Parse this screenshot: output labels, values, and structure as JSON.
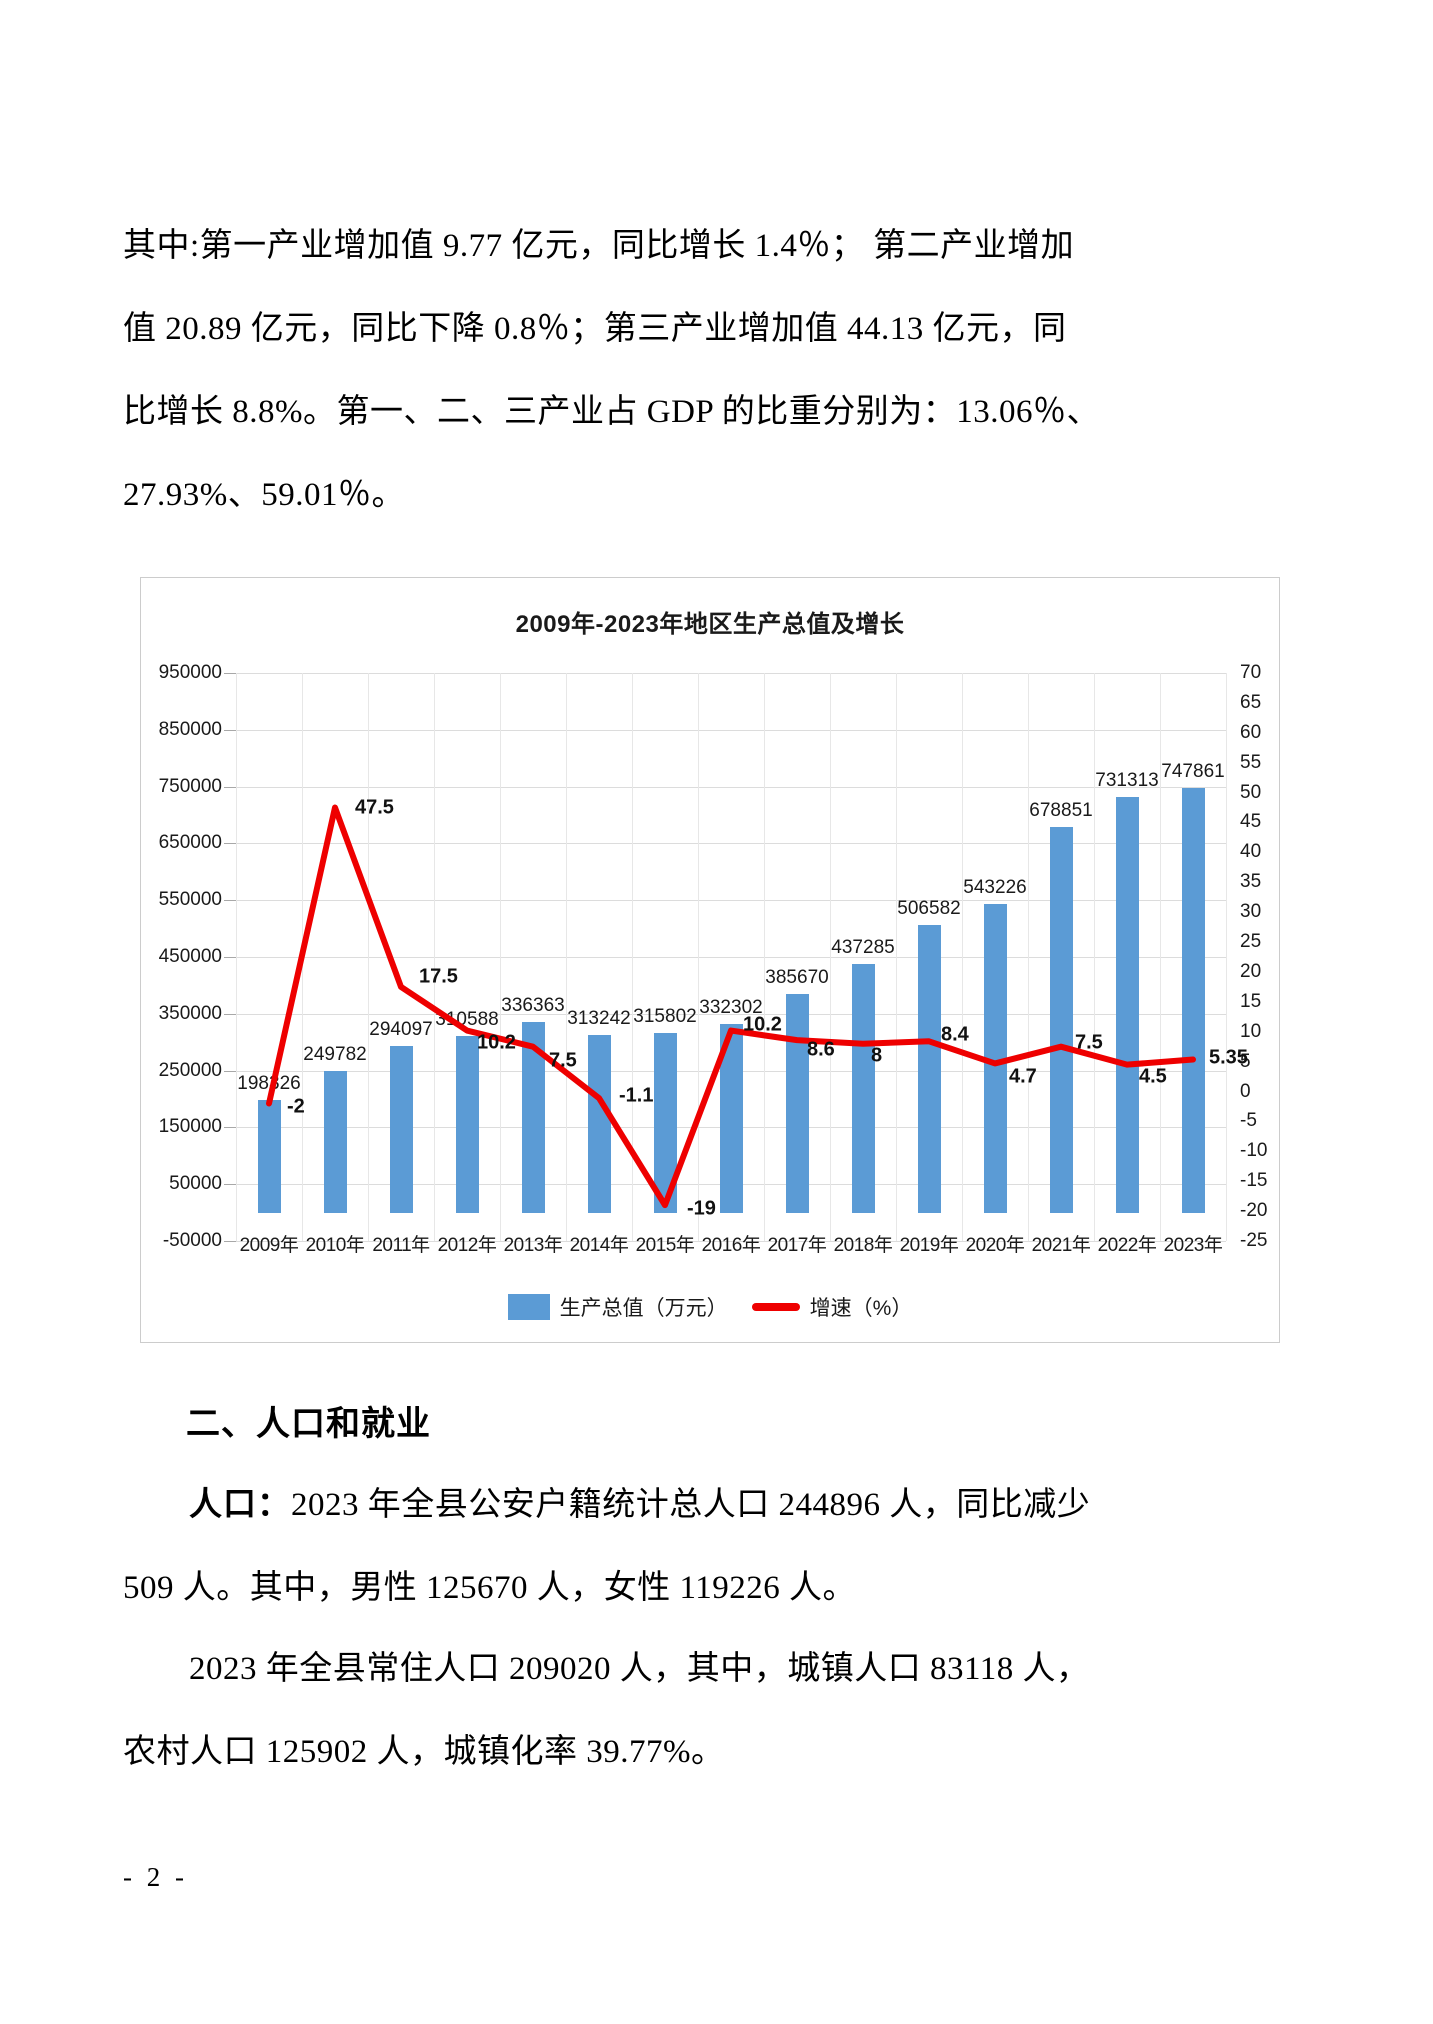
{
  "page": {
    "footer": "- 2 -"
  },
  "body_text": {
    "para1": {
      "lines": [
        {
          "text": "其中:第一产业增加值 9.77 亿元，同比增长 1.4％； 第二产业增加",
          "indent": false
        },
        {
          "text": "值 20.89 亿元，同比下降 0.8％；第三产业增加值 44.13 亿元，同",
          "indent": false
        },
        {
          "text": "比增长 8.8%。第一、二、三产业占 GDP 的比重分别为：13.06％、",
          "indent": false
        },
        {
          "text": "27.93%、59.01％。",
          "indent": false
        }
      ]
    },
    "section_heading": "二、人口和就业",
    "para2": {
      "lines": [
        {
          "bold_prefix": "人口：",
          "text": "2023 年全县公安户籍统计总人口 244896 人，同比减少",
          "indent": true
        },
        {
          "text": "509 人。其中，男性 125670 人，女性 119226 人。",
          "indent": false
        }
      ]
    },
    "para3": {
      "lines": [
        {
          "text": "2023 年全县常住人口 209020 人，其中，城镇人口 83118 人，",
          "indent": true
        },
        {
          "text": "农村人口 125902 人，城镇化率 39.77%。",
          "indent": false
        }
      ]
    }
  },
  "chart_data": {
    "type": "combo-bar-line",
    "title": "2009年-2023年地区生产总值及增长",
    "categories": [
      "2009年",
      "2010年",
      "2011年",
      "2012年",
      "2013年",
      "2014年",
      "2015年",
      "2016年",
      "2017年",
      "2018年",
      "2019年",
      "2020年",
      "2021年",
      "2022年",
      "2023年"
    ],
    "series": [
      {
        "name": "生产总值（万元）",
        "type": "bar",
        "color": "#5B9BD5",
        "values": [
          198326,
          249782,
          294097,
          310588,
          336363,
          313242,
          315802,
          332302,
          385670,
          437285,
          506582,
          543226,
          678851,
          731313,
          747861
        ],
        "labels": [
          "198326",
          "249782",
          "294097",
          "310588",
          "336363",
          "313242",
          "315802",
          "332302",
          "385670",
          "437285",
          "506582",
          "543226",
          "678851",
          "731313",
          "747861"
        ]
      },
      {
        "name": "增速（%）",
        "type": "line",
        "color": "#EE0000",
        "values": [
          -2,
          47.5,
          17.5,
          10.2,
          7.5,
          -1.1,
          -19,
          10.2,
          8.6,
          8,
          8.4,
          4.7,
          7.5,
          4.5,
          5.35
        ],
        "labels": [
          "-2",
          "47.5",
          "17.5",
          "10.2",
          "7.5",
          "-1.1",
          "-19",
          "10.2",
          "8.6",
          "8",
          "8.4",
          "4.7",
          "7.5",
          "4.5",
          "5.35"
        ]
      }
    ],
    "left_axis": {
      "min": -50000,
      "max": 950000,
      "step": 100000,
      "ticks": [
        950000,
        850000,
        750000,
        650000,
        550000,
        450000,
        350000,
        250000,
        150000,
        50000,
        -50000
      ]
    },
    "right_axis": {
      "min": -25,
      "max": 70,
      "step": 5,
      "ticks": [
        70,
        65,
        60,
        55,
        50,
        45,
        40,
        35,
        30,
        25,
        20,
        15,
        10,
        5,
        0,
        -5,
        -10,
        -15,
        -20,
        -25
      ]
    },
    "legend_position": "bottom",
    "grid": true
  }
}
